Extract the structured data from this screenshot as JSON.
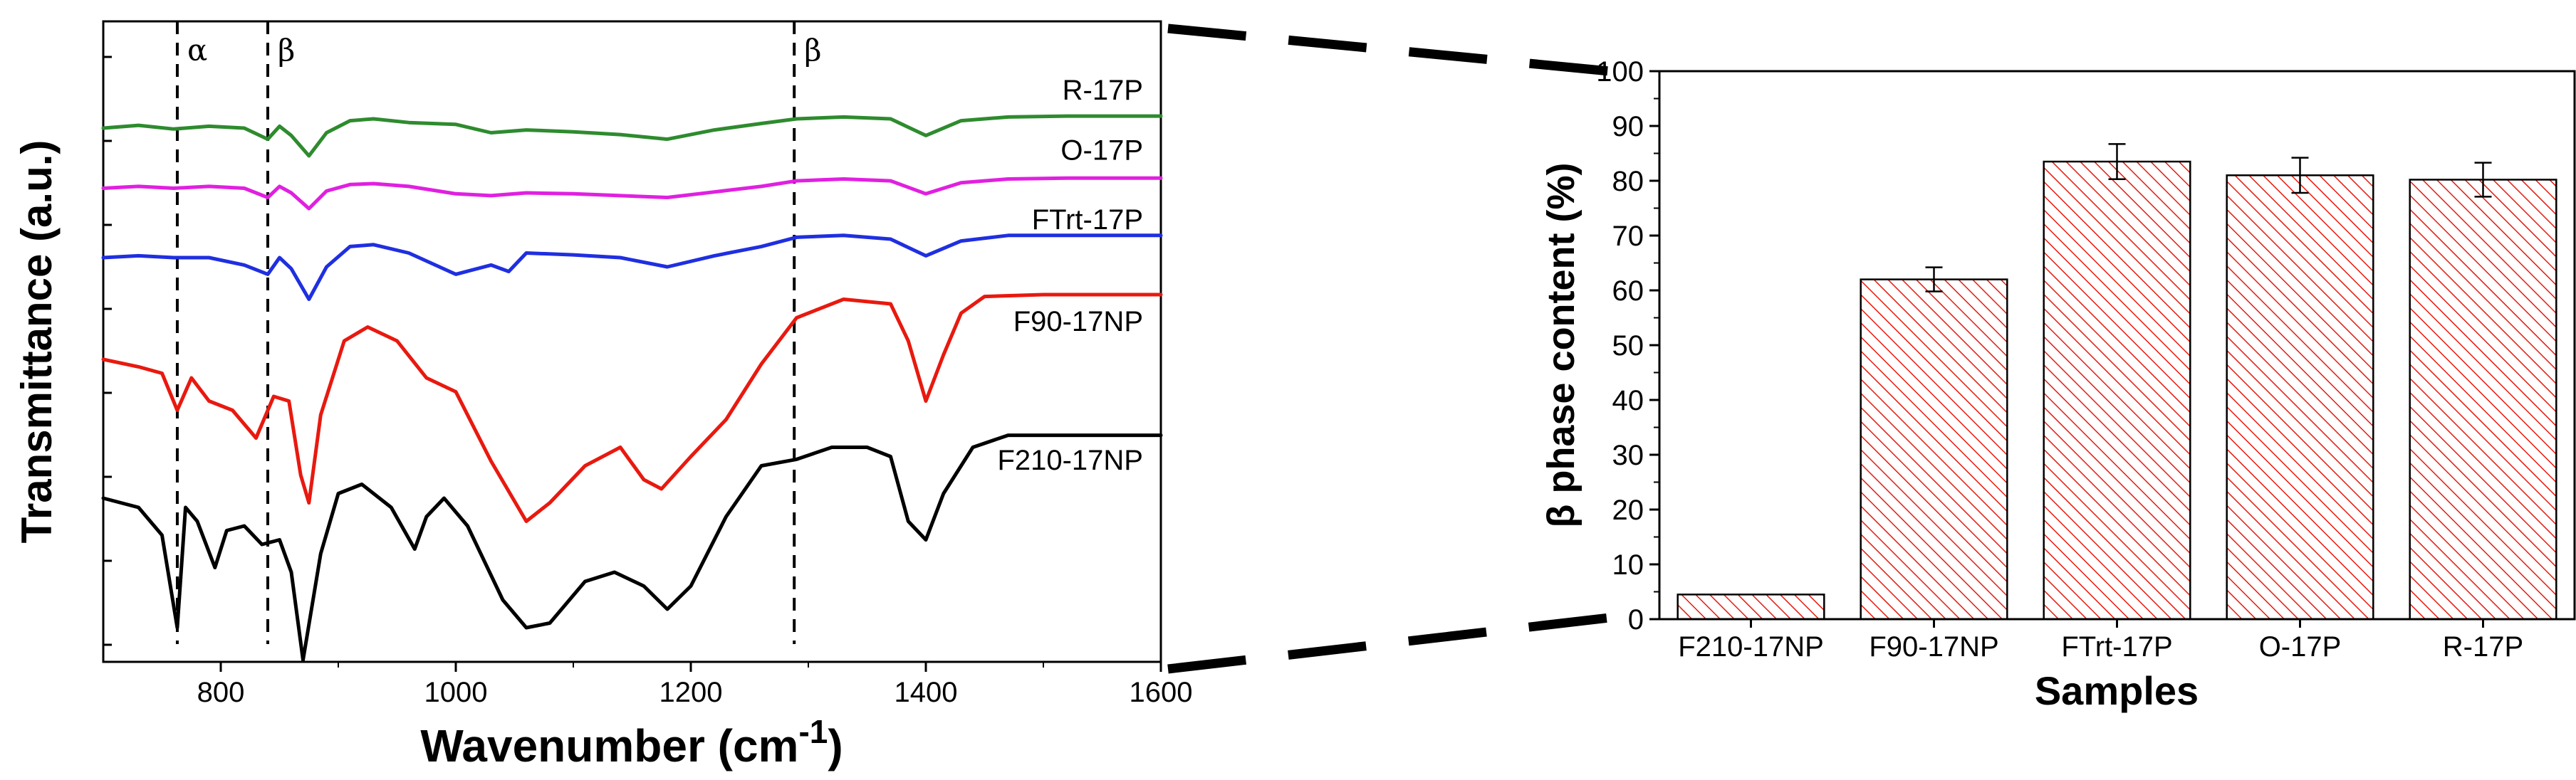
{
  "chart_data": [
    {
      "type": "line",
      "title": "",
      "xlabel": "Wavenumber (cm",
      "xlabel_superscript": "-1",
      "xlabel_close": ")",
      "ylabel": "Transmittance (a.u.)",
      "xlim": [
        700,
        1600
      ],
      "xticks": [
        800,
        1000,
        1200,
        1400,
        1600
      ],
      "xtick_labels": [
        "800",
        "1000",
        "1200",
        "1400",
        "1600"
      ],
      "y_tick_labels_shown": false,
      "annotations": [
        {
          "text": "α",
          "x": 763
        },
        {
          "text": "β",
          "x": 840
        },
        {
          "text": "β",
          "x": 1288
        }
      ],
      "series": [
        {
          "name": "R-17P",
          "color": "#2e8b2e",
          "offset": 4.0,
          "x": [
            700,
            730,
            760,
            790,
            820,
            840,
            850,
            860,
            875,
            890,
            910,
            930,
            960,
            1000,
            1030,
            1060,
            1100,
            1140,
            1180,
            1220,
            1260,
            1290,
            1330,
            1370,
            1400,
            1430,
            1470,
            1520,
            1600
          ],
          "y": [
            0.0,
            0.03,
            -0.01,
            0.02,
            0.0,
            -0.12,
            0.02,
            -0.08,
            -0.3,
            -0.05,
            0.08,
            0.1,
            0.06,
            0.04,
            -0.05,
            -0.02,
            -0.04,
            -0.07,
            -0.12,
            -0.02,
            0.05,
            0.1,
            0.12,
            0.1,
            -0.08,
            0.08,
            0.12,
            0.13,
            0.13
          ]
        },
        {
          "name": "O-17P",
          "color": "#e020e0",
          "offset": 3.35,
          "x": [
            700,
            730,
            760,
            790,
            820,
            840,
            850,
            860,
            875,
            890,
            910,
            930,
            960,
            1000,
            1030,
            1060,
            1100,
            1140,
            1180,
            1220,
            1260,
            1290,
            1330,
            1370,
            1400,
            1430,
            1470,
            1520,
            1600
          ],
          "y": [
            0.0,
            0.02,
            0.0,
            0.02,
            0.0,
            -0.1,
            0.02,
            -0.05,
            -0.22,
            -0.03,
            0.04,
            0.05,
            0.02,
            -0.06,
            -0.08,
            -0.05,
            -0.06,
            -0.08,
            -0.1,
            -0.04,
            0.02,
            0.08,
            0.1,
            0.08,
            -0.06,
            0.06,
            0.1,
            0.11,
            0.11
          ]
        },
        {
          "name": "FTrt-17P",
          "color": "#1f2fe0",
          "offset": 2.6,
          "x": [
            700,
            730,
            760,
            790,
            820,
            840,
            850,
            860,
            875,
            890,
            910,
            930,
            960,
            1000,
            1030,
            1045,
            1060,
            1100,
            1140,
            1180,
            1220,
            1260,
            1290,
            1330,
            1370,
            1400,
            1430,
            1470,
            1520,
            1600
          ],
          "y": [
            0.0,
            0.02,
            0.0,
            0.0,
            -0.08,
            -0.18,
            0.0,
            -0.12,
            -0.45,
            -0.1,
            0.12,
            0.14,
            0.05,
            -0.18,
            -0.08,
            -0.15,
            0.05,
            0.03,
            0.0,
            -0.1,
            0.02,
            0.12,
            0.22,
            0.24,
            0.2,
            0.02,
            0.18,
            0.24,
            0.24,
            0.24
          ]
        },
        {
          "name": "F90-17NP",
          "color": "#e8190f",
          "offset": 1.5,
          "x": [
            700,
            730,
            750,
            763,
            775,
            790,
            810,
            830,
            845,
            858,
            868,
            875,
            885,
            905,
            925,
            950,
            975,
            1000,
            1030,
            1060,
            1080,
            1110,
            1140,
            1160,
            1175,
            1200,
            1230,
            1260,
            1290,
            1330,
            1370,
            1385,
            1400,
            1415,
            1430,
            1450,
            1500,
            1600
          ],
          "y": [
            0.0,
            -0.08,
            -0.15,
            -0.55,
            -0.2,
            -0.45,
            -0.55,
            -0.85,
            -0.4,
            -0.45,
            -1.25,
            -1.55,
            -0.6,
            0.2,
            0.35,
            0.2,
            -0.2,
            -0.35,
            -1.1,
            -1.75,
            -1.55,
            -1.15,
            -0.95,
            -1.3,
            -1.4,
            -1.05,
            -0.65,
            -0.05,
            0.45,
            0.65,
            0.6,
            0.2,
            -0.45,
            0.05,
            0.5,
            0.68,
            0.7,
            0.7
          ]
        },
        {
          "name": "F210-17NP",
          "color": "#000000",
          "offset": 0.0,
          "x": [
            700,
            730,
            750,
            763,
            770,
            780,
            795,
            805,
            820,
            835,
            850,
            860,
            870,
            885,
            900,
            920,
            945,
            965,
            975,
            990,
            1010,
            1040,
            1060,
            1080,
            1110,
            1135,
            1160,
            1180,
            1200,
            1230,
            1260,
            1290,
            1320,
            1350,
            1370,
            1385,
            1400,
            1415,
            1440,
            1470,
            1520,
            1600
          ],
          "y": [
            0.0,
            -0.1,
            -0.4,
            -1.4,
            -0.1,
            -0.25,
            -0.75,
            -0.35,
            -0.3,
            -0.5,
            -0.45,
            -0.8,
            -1.75,
            -0.6,
            0.05,
            0.15,
            -0.1,
            -0.55,
            -0.2,
            0.0,
            -0.3,
            -1.1,
            -1.4,
            -1.35,
            -0.9,
            -0.8,
            -0.95,
            -1.2,
            -0.95,
            -0.2,
            0.35,
            0.42,
            0.55,
            0.55,
            0.45,
            -0.25,
            -0.45,
            0.05,
            0.55,
            0.68,
            0.68,
            0.68
          ]
        }
      ]
    },
    {
      "type": "bar",
      "title": "",
      "xlabel": "Samples",
      "ylabel": "β phase content (%)",
      "ylim": [
        0,
        100
      ],
      "yticks": [
        0,
        10,
        20,
        30,
        40,
        50,
        60,
        70,
        80,
        90,
        100
      ],
      "ytick_labels": [
        "0",
        "10",
        "20",
        "30",
        "40",
        "50",
        "60",
        "70",
        "80",
        "90",
        "100"
      ],
      "categories": [
        "F210-17NP",
        "F90-17NP",
        "FTrt-17P",
        "O-17P",
        "R-17P"
      ],
      "values": [
        4.5,
        62.0,
        83.5,
        81.0,
        80.2
      ],
      "errors": [
        0,
        2.2,
        3.2,
        3.2,
        3.1
      ],
      "bar_fill": "hatched red",
      "hatch_color": "#e8190f"
    }
  ]
}
